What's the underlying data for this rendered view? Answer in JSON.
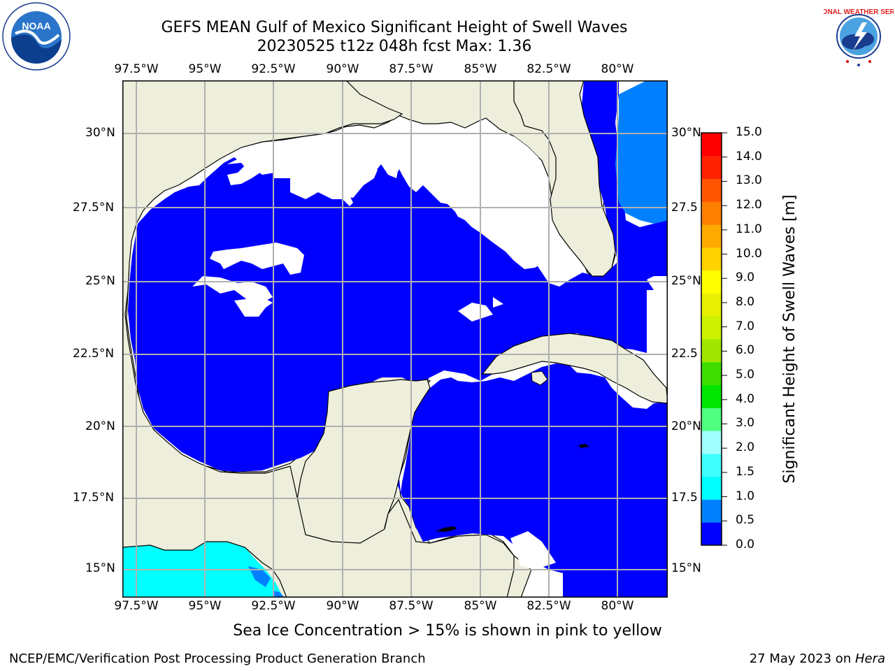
{
  "title": {
    "line1": "GEFS MEAN Gulf of Mexico Significant Height of Swell Waves",
    "line2": "20230525 t12z 048h fcst   Max: 1.36"
  },
  "map": {
    "lon_labels": [
      "97.5°W",
      "95°W",
      "92.5°W",
      "90°W",
      "87.5°W",
      "85°W",
      "82.5°W",
      "80°W"
    ],
    "lat_labels": [
      "30°N",
      "27.5°N",
      "25°N",
      "22.5°N",
      "20°N",
      "17.5°N",
      "15°N"
    ],
    "lat_labels_right": [
      "30°N",
      "27.5",
      "25°N",
      "22.5",
      "20°N",
      "17.5",
      "15°N"
    ],
    "colors": {
      "land": "#eeeedc",
      "ocean_low": "#0000ff",
      "ocean_mid": "#0080ff",
      "ocean_cyan": "#00ffff",
      "grid": "#b0b0b0"
    }
  },
  "colorbar": {
    "label": "Significant Height of Swell Waves [m]",
    "ticks": [
      "15.0",
      "14.0",
      "13.0",
      "12.0",
      "11.0",
      "10.0",
      "9.0",
      "8.0",
      "7.0",
      "6.0",
      "5.0",
      "4.0",
      "3.0",
      "2.0",
      "1.5",
      "1.0",
      "0.5",
      "0.0"
    ],
    "colors": [
      "#0000ff",
      "#0080ff",
      "#00ffff",
      "#40ffff",
      "#a0ffff",
      "#50ff80",
      "#00e600",
      "#40dd00",
      "#a0e600",
      "#ccf200",
      "#e6f000",
      "#ffff00",
      "#ffd200",
      "#ffaa00",
      "#ff8000",
      "#ff5500",
      "#ff2200",
      "#ff0000"
    ]
  },
  "ice_note": "Sea Ice Concentration > 15% is shown in pink to yellow",
  "footer": {
    "left": "NCEP/EMC/Verification Post Processing Product Generation Branch",
    "right_date": "27 May 2023 on ",
    "right_machine": "Hera"
  },
  "logos": {
    "noaa": "NOAA",
    "nws": "NATIONAL WEATHER SERVICE"
  }
}
